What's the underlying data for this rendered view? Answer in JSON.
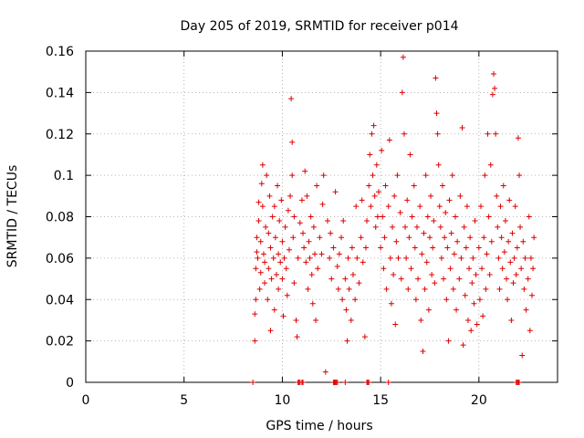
{
  "chart_data": {
    "type": "scatter",
    "title": "Day 205 of 2019, SRMTID for receiver p014",
    "xlabel": "GPS time / hours",
    "ylabel": "SRMTID / TECUs",
    "xlim": [
      0,
      24
    ],
    "ylim": [
      0,
      0.16
    ],
    "xticks": [
      "0",
      "5",
      "10",
      "15",
      "20"
    ],
    "yticks": [
      "0",
      "0.02",
      "0.04",
      "0.06",
      "0.08",
      "0.1",
      "0.12",
      "0.14",
      "0.16"
    ],
    "grid": true,
    "marker": "+",
    "color": "#dd0000",
    "series": [
      {
        "name": "SRMTID",
        "points": [
          [
            8.6,
            0.02
          ],
          [
            8.6,
            0.033
          ],
          [
            8.65,
            0.04
          ],
          [
            8.65,
            0.055
          ],
          [
            8.7,
            0.063
          ],
          [
            8.7,
            0.07
          ],
          [
            8.75,
            0.06
          ],
          [
            8.8,
            0.078
          ],
          [
            8.8,
            0.087
          ],
          [
            8.85,
            0.045
          ],
          [
            8.9,
            0.053
          ],
          [
            8.9,
            0.068
          ],
          [
            8.95,
            0.096
          ],
          [
            9.0,
            0.105
          ],
          [
            9.0,
            0.085
          ],
          [
            9.05,
            0.062
          ],
          [
            9.1,
            0.048
          ],
          [
            9.1,
            0.058
          ],
          [
            9.15,
            0.075
          ],
          [
            9.2,
            0.1
          ],
          [
            9.25,
            0.04
          ],
          [
            9.3,
            0.055
          ],
          [
            9.3,
            0.072
          ],
          [
            9.35,
            0.09
          ],
          [
            9.4,
            0.025
          ],
          [
            9.4,
            0.065
          ],
          [
            9.45,
            0.05
          ],
          [
            9.5,
            0.08
          ],
          [
            9.55,
            0.06
          ],
          [
            9.6,
            0.085
          ],
          [
            9.6,
            0.035
          ],
          [
            9.65,
            0.07
          ],
          [
            9.7,
            0.052
          ],
          [
            9.75,
            0.095
          ],
          [
            9.8,
            0.062
          ],
          [
            9.8,
            0.045
          ],
          [
            9.85,
            0.078
          ],
          [
            9.9,
            0.058
          ],
          [
            9.95,
            0.088
          ],
          [
            10.0,
            0.05
          ],
          [
            10.0,
            0.068
          ],
          [
            10.05,
            0.032
          ],
          [
            10.1,
            0.06
          ],
          [
            10.15,
            0.075
          ],
          [
            10.2,
            0.055
          ],
          [
            10.25,
            0.042
          ],
          [
            10.3,
            0.083
          ],
          [
            10.35,
            0.064
          ],
          [
            10.4,
            0.09
          ],
          [
            10.45,
            0.137
          ],
          [
            10.5,
            0.116
          ],
          [
            10.5,
            0.1
          ],
          [
            10.55,
            0.07
          ],
          [
            10.6,
            0.048
          ],
          [
            10.6,
            0.08
          ],
          [
            10.7,
            0.03
          ],
          [
            10.75,
            0.022
          ],
          [
            10.8,
            0.06
          ],
          [
            10.9,
            0.077
          ],
          [
            11.0,
            0.088
          ],
          [
            11.05,
            0.072
          ],
          [
            11.1,
            0.065
          ],
          [
            11.15,
            0.102
          ],
          [
            11.2,
            0.058
          ],
          [
            11.25,
            0.09
          ],
          [
            11.3,
            0.045
          ],
          [
            11.35,
            0.068
          ],
          [
            11.4,
            0.06
          ],
          [
            11.45,
            0.08
          ],
          [
            11.5,
            0.052
          ],
          [
            11.55,
            0.038
          ],
          [
            11.6,
            0.075
          ],
          [
            11.65,
            0.062
          ],
          [
            11.7,
            0.03
          ],
          [
            11.75,
            0.095
          ],
          [
            11.8,
            0.055
          ],
          [
            11.9,
            0.07
          ],
          [
            12.0,
            0.062
          ],
          [
            12.05,
            0.086
          ],
          [
            12.1,
            0.1
          ],
          [
            12.2,
            0.005
          ],
          [
            12.3,
            0.078
          ],
          [
            12.4,
            0.06
          ],
          [
            12.45,
            0.072
          ],
          [
            12.5,
            0.05
          ],
          [
            12.6,
            0.065
          ],
          [
            12.7,
            0.092
          ],
          [
            12.8,
            0.056
          ],
          [
            12.85,
            0.045
          ],
          [
            12.9,
            0.062
          ],
          [
            13.0,
            0.07
          ],
          [
            13.05,
            0.04
          ],
          [
            13.1,
            0.078
          ],
          [
            13.2,
            0.05
          ],
          [
            13.25,
            0.035
          ],
          [
            13.3,
            0.02
          ],
          [
            13.35,
            0.06
          ],
          [
            13.4,
            0.045
          ],
          [
            13.5,
            0.03
          ],
          [
            13.55,
            0.065
          ],
          [
            13.6,
            0.052
          ],
          [
            13.7,
            0.04
          ],
          [
            13.75,
            0.085
          ],
          [
            13.8,
            0.06
          ],
          [
            13.9,
            0.048
          ],
          [
            14.0,
            0.07
          ],
          [
            14.05,
            0.088
          ],
          [
            14.1,
            0.058
          ],
          [
            14.2,
            0.022
          ],
          [
            14.25,
            0.065
          ],
          [
            14.3,
            0.078
          ],
          [
            14.4,
            0.095
          ],
          [
            14.45,
            0.11
          ],
          [
            14.5,
            0.085
          ],
          [
            14.55,
            0.12
          ],
          [
            14.6,
            0.1
          ],
          [
            14.65,
            0.124
          ],
          [
            14.7,
            0.09
          ],
          [
            14.75,
            0.075
          ],
          [
            14.8,
            0.105
          ],
          [
            14.85,
            0.08
          ],
          [
            14.9,
            0.092
          ],
          [
            15.0,
            0.065
          ],
          [
            15.05,
            0.112
          ],
          [
            15.1,
            0.08
          ],
          [
            15.15,
            0.055
          ],
          [
            15.2,
            0.07
          ],
          [
            15.25,
            0.095
          ],
          [
            15.3,
            0.045
          ],
          [
            15.4,
            0.085
          ],
          [
            15.45,
            0.117
          ],
          [
            15.5,
            0.06
          ],
          [
            15.55,
            0.038
          ],
          [
            15.6,
            0.075
          ],
          [
            15.65,
            0.052
          ],
          [
            15.7,
            0.09
          ],
          [
            15.75,
            0.028
          ],
          [
            15.8,
            0.068
          ],
          [
            15.85,
            0.1
          ],
          [
            15.9,
            0.06
          ],
          [
            16.0,
            0.082
          ],
          [
            16.05,
            0.05
          ],
          [
            16.1,
            0.14
          ],
          [
            16.15,
            0.157
          ],
          [
            16.2,
            0.12
          ],
          [
            16.25,
            0.075
          ],
          [
            16.3,
            0.06
          ],
          [
            16.35,
            0.088
          ],
          [
            16.4,
            0.045
          ],
          [
            16.45,
            0.07
          ],
          [
            16.5,
            0.11
          ],
          [
            16.55,
            0.055
          ],
          [
            16.6,
            0.08
          ],
          [
            16.7,
            0.095
          ],
          [
            16.75,
            0.065
          ],
          [
            16.8,
            0.04
          ],
          [
            16.85,
            0.075
          ],
          [
            16.9,
            0.05
          ],
          [
            17.0,
            0.085
          ],
          [
            17.05,
            0.03
          ],
          [
            17.1,
            0.062
          ],
          [
            17.15,
            0.015
          ],
          [
            17.2,
            0.072
          ],
          [
            17.25,
            0.045
          ],
          [
            17.3,
            0.1
          ],
          [
            17.35,
            0.058
          ],
          [
            17.4,
            0.08
          ],
          [
            17.45,
            0.035
          ],
          [
            17.5,
            0.07
          ],
          [
            17.55,
            0.09
          ],
          [
            17.6,
            0.052
          ],
          [
            17.65,
            0.065
          ],
          [
            17.7,
            0.078
          ],
          [
            17.75,
            0.048
          ],
          [
            17.8,
            0.147
          ],
          [
            17.85,
            0.13
          ],
          [
            17.9,
            0.12
          ],
          [
            17.95,
            0.105
          ],
          [
            18.0,
            0.085
          ],
          [
            18.05,
            0.075
          ],
          [
            18.1,
            0.06
          ],
          [
            18.15,
            0.095
          ],
          [
            18.2,
            0.05
          ],
          [
            18.25,
            0.07
          ],
          [
            18.3,
            0.082
          ],
          [
            18.35,
            0.04
          ],
          [
            18.4,
            0.065
          ],
          [
            18.45,
            0.02
          ],
          [
            18.5,
            0.088
          ],
          [
            18.55,
            0.055
          ],
          [
            18.6,
            0.072
          ],
          [
            18.65,
            0.1
          ],
          [
            18.7,
            0.045
          ],
          [
            18.75,
            0.062
          ],
          [
            18.8,
            0.08
          ],
          [
            18.85,
            0.035
          ],
          [
            18.9,
            0.068
          ],
          [
            19.0,
            0.05
          ],
          [
            19.05,
            0.09
          ],
          [
            19.1,
            0.06
          ],
          [
            19.15,
            0.123
          ],
          [
            19.2,
            0.018
          ],
          [
            19.25,
            0.075
          ],
          [
            19.3,
            0.042
          ],
          [
            19.35,
            0.065
          ],
          [
            19.4,
            0.085
          ],
          [
            19.45,
            0.03
          ],
          [
            19.5,
            0.055
          ],
          [
            19.55,
            0.07
          ],
          [
            19.6,
            0.025
          ],
          [
            19.65,
            0.048
          ],
          [
            19.7,
            0.06
          ],
          [
            19.75,
            0.038
          ],
          [
            19.8,
            0.078
          ],
          [
            19.85,
            0.052
          ],
          [
            19.9,
            0.028
          ],
          [
            20.0,
            0.065
          ],
          [
            20.05,
            0.04
          ],
          [
            20.1,
            0.085
          ],
          [
            20.15,
            0.055
          ],
          [
            20.2,
            0.032
          ],
          [
            20.25,
            0.07
          ],
          [
            20.3,
            0.1
          ],
          [
            20.35,
            0.045
          ],
          [
            20.4,
            0.062
          ],
          [
            20.45,
            0.12
          ],
          [
            20.5,
            0.08
          ],
          [
            20.55,
            0.052
          ],
          [
            20.6,
            0.105
          ],
          [
            20.65,
            0.068
          ],
          [
            20.7,
            0.139
          ],
          [
            20.75,
            0.149
          ],
          [
            20.8,
            0.142
          ],
          [
            20.85,
            0.12
          ],
          [
            20.9,
            0.09
          ],
          [
            20.95,
            0.075
          ],
          [
            21.0,
            0.06
          ],
          [
            21.05,
            0.045
          ],
          [
            21.1,
            0.085
          ],
          [
            21.15,
            0.07
          ],
          [
            21.2,
            0.055
          ],
          [
            21.25,
            0.095
          ],
          [
            21.3,
            0.063
          ],
          [
            21.35,
            0.078
          ],
          [
            21.4,
            0.05
          ],
          [
            21.45,
            0.04
          ],
          [
            21.5,
            0.068
          ],
          [
            21.55,
            0.088
          ],
          [
            21.6,
            0.058
          ],
          [
            21.65,
            0.03
          ],
          [
            21.7,
            0.072
          ],
          [
            21.75,
            0.048
          ],
          [
            21.8,
            0.06
          ],
          [
            21.85,
            0.085
          ],
          [
            21.9,
            0.052
          ],
          [
            21.95,
            0.065
          ],
          [
            22.0,
            0.118
          ],
          [
            22.05,
            0.1
          ],
          [
            22.1,
            0.075
          ],
          [
            22.15,
            0.055
          ],
          [
            22.2,
            0.013
          ],
          [
            22.25,
            0.068
          ],
          [
            22.3,
            0.045
          ],
          [
            22.35,
            0.06
          ],
          [
            22.4,
            0.035
          ],
          [
            22.5,
            0.05
          ],
          [
            22.55,
            0.08
          ],
          [
            22.6,
            0.025
          ],
          [
            22.65,
            0.06
          ],
          [
            22.7,
            0.042
          ],
          [
            22.75,
            0.055
          ],
          [
            22.8,
            0.07
          ]
        ]
      }
    ],
    "zero_points": [
      8.5,
      10.8,
      10.85,
      10.9,
      11.0,
      11.05,
      12.6,
      12.65,
      12.7,
      12.75,
      12.8,
      13.2,
      14.3,
      14.35,
      14.4,
      15.4,
      21.9,
      21.95,
      22.0,
      22.05
    ]
  }
}
